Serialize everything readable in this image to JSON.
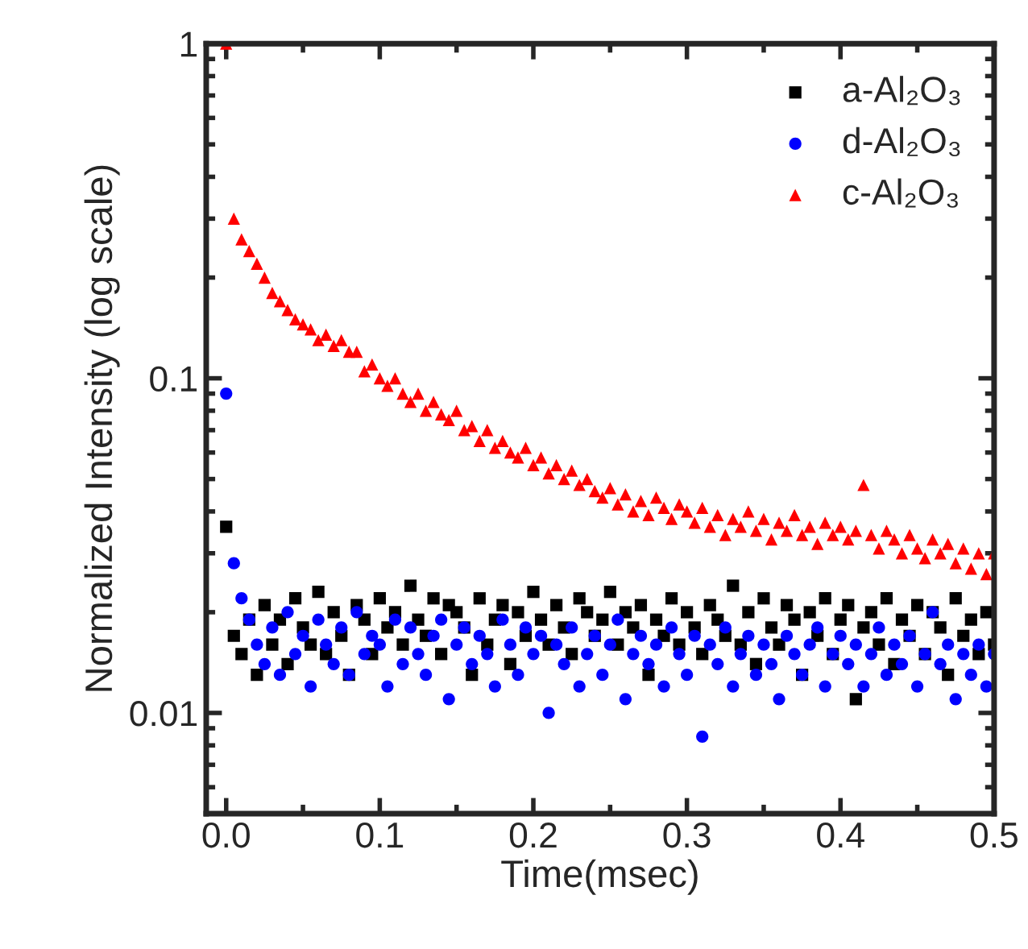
{
  "chart_data": {
    "type": "scatter",
    "xlabel": "Time(msec)",
    "ylabel": "Normalized Intensity (log scale)",
    "log": "y",
    "grid": false,
    "legend": "top right",
    "xlim": [
      -0.013,
      0.5
    ],
    "xticks": [
      {
        "value": 0,
        "label": "0.0"
      },
      0.1,
      0.2,
      0.3,
      0.4,
      0.5
    ],
    "ylim": [
      0.005,
      1
    ],
    "yticks": [
      0.01,
      0.1,
      1
    ],
    "x": [
      0.0,
      0.005,
      0.01,
      0.015,
      0.02,
      0.025,
      0.03,
      0.035,
      0.04,
      0.045,
      0.05,
      0.055,
      0.06,
      0.065,
      0.07,
      0.075,
      0.08,
      0.085,
      0.09,
      0.095,
      0.1,
      0.105,
      0.11,
      0.115,
      0.12,
      0.125,
      0.13,
      0.135,
      0.14,
      0.145,
      0.15,
      0.155,
      0.16,
      0.165,
      0.17,
      0.175,
      0.18,
      0.185,
      0.19,
      0.195,
      0.2,
      0.205,
      0.21,
      0.215,
      0.22,
      0.225,
      0.23,
      0.235,
      0.24,
      0.245,
      0.25,
      0.255,
      0.26,
      0.265,
      0.27,
      0.275,
      0.28,
      0.285,
      0.29,
      0.295,
      0.3,
      0.305,
      0.31,
      0.315,
      0.32,
      0.325,
      0.33,
      0.335,
      0.34,
      0.345,
      0.35,
      0.355,
      0.36,
      0.365,
      0.37,
      0.375,
      0.38,
      0.385,
      0.39,
      0.395,
      0.4,
      0.405,
      0.41,
      0.415,
      0.42,
      0.425,
      0.43,
      0.435,
      0.44,
      0.445,
      0.45,
      0.455,
      0.46,
      0.465,
      0.47,
      0.475,
      0.48,
      0.485,
      0.49,
      0.495,
      0.5
    ],
    "series": [
      {
        "name": "a-Al₂O₃",
        "color": "#000000",
        "marker": "square",
        "values": [
          0.036,
          0.017,
          0.015,
          0.019,
          0.013,
          0.021,
          0.016,
          0.019,
          0.014,
          0.022,
          0.018,
          0.016,
          0.023,
          0.015,
          0.02,
          0.017,
          0.013,
          0.021,
          0.019,
          0.015,
          0.022,
          0.018,
          0.02,
          0.016,
          0.024,
          0.019,
          0.017,
          0.022,
          0.015,
          0.021,
          0.02,
          0.018,
          0.013,
          0.022,
          0.016,
          0.019,
          0.021,
          0.014,
          0.02,
          0.017,
          0.023,
          0.019,
          0.016,
          0.021,
          0.018,
          0.015,
          0.022,
          0.02,
          0.017,
          0.019,
          0.023,
          0.016,
          0.02,
          0.018,
          0.021,
          0.013,
          0.019,
          0.017,
          0.022,
          0.016,
          0.02,
          0.018,
          0.015,
          0.021,
          0.019,
          0.017,
          0.024,
          0.016,
          0.02,
          0.014,
          0.022,
          0.018,
          0.016,
          0.021,
          0.019,
          0.013,
          0.02,
          0.017,
          0.022,
          0.015,
          0.019,
          0.021,
          0.011,
          0.018,
          0.02,
          0.016,
          0.022,
          0.014,
          0.019,
          0.017,
          0.021,
          0.015,
          0.02,
          0.018,
          0.013,
          0.022,
          0.017,
          0.019,
          0.015,
          0.02,
          0.016
        ]
      },
      {
        "name": "d-Al₂O₃",
        "color": "#0000ff",
        "marker": "circle",
        "values": [
          0.09,
          0.028,
          0.022,
          0.019,
          0.016,
          0.014,
          0.018,
          0.013,
          0.02,
          0.015,
          0.017,
          0.012,
          0.019,
          0.016,
          0.014,
          0.018,
          0.013,
          0.02,
          0.015,
          0.017,
          0.016,
          0.012,
          0.019,
          0.014,
          0.018,
          0.015,
          0.013,
          0.017,
          0.019,
          0.011,
          0.016,
          0.018,
          0.014,
          0.017,
          0.015,
          0.012,
          0.019,
          0.016,
          0.013,
          0.018,
          0.015,
          0.017,
          0.01,
          0.016,
          0.014,
          0.018,
          0.012,
          0.015,
          0.017,
          0.013,
          0.016,
          0.019,
          0.011,
          0.015,
          0.017,
          0.014,
          0.016,
          0.012,
          0.018,
          0.015,
          0.013,
          0.017,
          0.0085,
          0.016,
          0.014,
          0.018,
          0.012,
          0.015,
          0.017,
          0.013,
          0.016,
          0.014,
          0.011,
          0.017,
          0.015,
          0.013,
          0.016,
          0.018,
          0.012,
          0.015,
          0.017,
          0.014,
          0.016,
          0.012,
          0.015,
          0.018,
          0.013,
          0.016,
          0.014,
          0.017,
          0.012,
          0.015,
          0.02,
          0.014,
          0.016,
          0.011,
          0.015,
          0.013,
          0.016,
          0.012,
          0.015
        ]
      },
      {
        "name": "c-Al₂O₃",
        "color": "#ff0000",
        "marker": "triangle",
        "values": [
          1.0,
          0.3,
          0.26,
          0.24,
          0.22,
          0.2,
          0.18,
          0.17,
          0.16,
          0.15,
          0.145,
          0.14,
          0.13,
          0.135,
          0.125,
          0.13,
          0.12,
          0.12,
          0.105,
          0.11,
          0.1,
          0.095,
          0.1,
          0.09,
          0.085,
          0.09,
          0.08,
          0.085,
          0.078,
          0.075,
          0.08,
          0.07,
          0.072,
          0.065,
          0.07,
          0.062,
          0.065,
          0.06,
          0.058,
          0.062,
          0.055,
          0.058,
          0.052,
          0.055,
          0.05,
          0.053,
          0.048,
          0.05,
          0.046,
          0.044,
          0.047,
          0.042,
          0.045,
          0.04,
          0.043,
          0.039,
          0.044,
          0.041,
          0.038,
          0.042,
          0.04,
          0.037,
          0.041,
          0.036,
          0.039,
          0.034,
          0.038,
          0.036,
          0.04,
          0.035,
          0.038,
          0.033,
          0.037,
          0.035,
          0.039,
          0.034,
          0.036,
          0.032,
          0.037,
          0.034,
          0.036,
          0.033,
          0.035,
          0.048,
          0.034,
          0.031,
          0.035,
          0.033,
          0.03,
          0.034,
          0.031,
          0.029,
          0.033,
          0.03,
          0.032,
          0.028,
          0.031,
          0.027,
          0.03,
          0.026,
          0.03
        ]
      }
    ]
  }
}
